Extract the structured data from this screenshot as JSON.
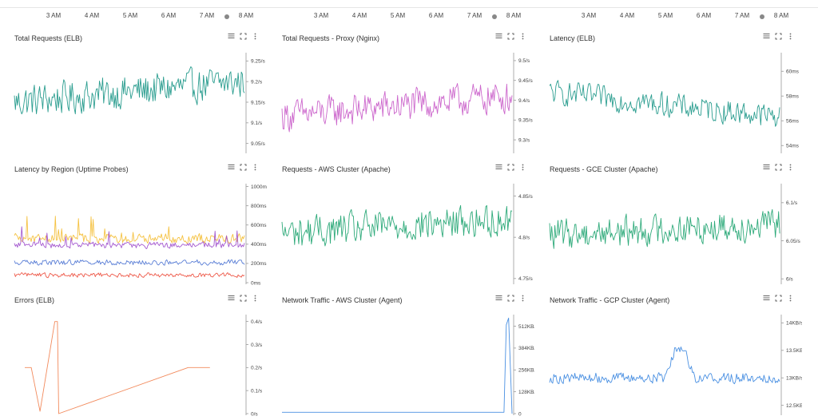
{
  "timeline": {
    "labels": [
      "3 AM",
      "4 AM",
      "5 AM",
      "6 AM",
      "7 AM",
      "8 AM"
    ]
  },
  "colors": {
    "teal": "#2a9d8f",
    "magenta": "#cc66cc",
    "green": "#2eaa7a",
    "orange": "#f28a5c",
    "blue": "#4a90e2",
    "region_yellow": "#f5c242",
    "region_purple": "#a55ad0",
    "region_blue": "#5b7fd6",
    "region_red": "#ee5a4a"
  },
  "panels": [
    {
      "title": "Total Requests (ELB)",
      "icons": [
        "bars-icon",
        "expand-icon",
        "more-icon"
      ]
    },
    {
      "title": "Total Requests - Proxy (Nginx)",
      "icons": [
        "bars-icon",
        "expand-icon",
        "more-icon"
      ]
    },
    {
      "title": "Latency (ELB)",
      "icons": [
        "bars-icon",
        "expand-icon",
        "more-icon"
      ]
    },
    {
      "title": "Latency by Region (Uptime Probes)",
      "icons": [
        "bars-icon",
        "expand-icon",
        "more-icon"
      ]
    },
    {
      "title": "Requests - AWS Cluster (Apache)",
      "icons": [
        "bars-icon",
        "expand-icon",
        "more-icon"
      ]
    },
    {
      "title": "Requests - GCE Cluster (Apache)",
      "icons": [
        "bars-icon",
        "expand-icon",
        "more-icon"
      ]
    },
    {
      "title": "Errors (ELB)",
      "icons": [
        "bars-icon",
        "expand-icon",
        "more-icon"
      ]
    },
    {
      "title": "Network Traffic - AWS Cluster (Agent)",
      "icons": [
        "bars-icon",
        "expand-icon",
        "more-icon"
      ]
    },
    {
      "title": "Network Traffic - GCP Cluster (Agent)",
      "icons": [
        "bars-icon",
        "expand-icon",
        "more-icon"
      ]
    }
  ],
  "chart_data": [
    {
      "type": "line",
      "title": "Total Requests (ELB)",
      "ylim": [
        9.03,
        9.27
      ],
      "y_ticks": [
        "9.05/s",
        "9.1/s",
        "9.15/s",
        "9.2/s",
        "9.25/s"
      ],
      "y_tick_values": [
        9.05,
        9.1,
        9.15,
        9.2,
        9.25
      ],
      "series": [
        {
          "shape": "noisy",
          "base_start": 9.15,
          "base_end": 9.2,
          "amplitude": 0.05,
          "color": "teal"
        }
      ]
    },
    {
      "type": "line",
      "title": "Total Requests - Proxy (Nginx)",
      "ylim": [
        9.27,
        9.52
      ],
      "y_ticks": [
        "9.3/s",
        "9.35/s",
        "9.4/s",
        "9.45/s",
        "9.5/s"
      ],
      "y_tick_values": [
        9.3,
        9.35,
        9.4,
        9.45,
        9.5
      ],
      "series": [
        {
          "shape": "noisy",
          "base_start": 9.36,
          "base_end": 9.41,
          "amplitude": 0.05,
          "color": "magenta"
        }
      ]
    },
    {
      "type": "line",
      "title": "Latency (ELB)",
      "ylim": [
        53.5,
        61.5
      ],
      "y_ticks": [
        "54ms",
        "56ms",
        "58ms",
        "60ms"
      ],
      "y_tick_values": [
        54,
        56,
        58,
        60
      ],
      "series": [
        {
          "shape": "noisy",
          "base_start": 58.3,
          "base_end": 56.3,
          "amplitude": 1.2,
          "color": "teal"
        }
      ]
    },
    {
      "type": "line",
      "title": "Latency by Region (Uptime Probes)",
      "ylim": [
        0,
        1030
      ],
      "y_ticks": [
        "0ms",
        "200ms",
        "400ms",
        "600ms",
        "800ms",
        "1000ms"
      ],
      "y_tick_values": [
        0,
        200,
        400,
        600,
        800,
        1000
      ],
      "series": [
        {
          "shape": "noisy",
          "base_start": 460,
          "base_end": 460,
          "amplitude": 60,
          "spikes": 240,
          "color": "region_yellow"
        },
        {
          "shape": "noisy",
          "base_start": 390,
          "base_end": 390,
          "amplitude": 40,
          "spikes": 200,
          "color": "region_purple"
        },
        {
          "shape": "noisy",
          "base_start": 210,
          "base_end": 210,
          "amplitude": 35,
          "color": "region_blue"
        },
        {
          "shape": "noisy",
          "base_start": 80,
          "base_end": 80,
          "amplitude": 30,
          "color": "region_red"
        }
      ]
    },
    {
      "type": "line",
      "title": "Requests - AWS Cluster (Apache)",
      "ylim": [
        4.745,
        4.865
      ],
      "y_ticks": [
        "4.75/s",
        "4.8/s",
        "4.85/s"
      ],
      "y_tick_values": [
        4.75,
        4.8,
        4.85
      ],
      "series": [
        {
          "shape": "noisy",
          "base_start": 4.805,
          "base_end": 4.822,
          "amplitude": 0.025,
          "color": "green"
        }
      ]
    },
    {
      "type": "line",
      "title": "Requests - GCE Cluster (Apache)",
      "ylim": [
        5.995,
        6.125
      ],
      "y_ticks": [
        "6/s",
        "6.05/s",
        "6.1/s"
      ],
      "y_tick_values": [
        6.0,
        6.05,
        6.1
      ],
      "series": [
        {
          "shape": "noisy",
          "base_start": 6.058,
          "base_end": 6.072,
          "amplitude": 0.025,
          "color": "green"
        }
      ]
    },
    {
      "type": "line",
      "title": "Errors (ELB)",
      "ylim": [
        0,
        0.43
      ],
      "y_ticks": [
        "0/s",
        "0.1/s",
        "0.2/s",
        "0.3/s",
        "0.4/s"
      ],
      "y_tick_values": [
        0,
        0.1,
        0.2,
        0.3,
        0.4
      ],
      "series": [
        {
          "shape": "points",
          "x": [
            0,
            0.03,
            0.07,
            0.138,
            0.15,
            0.156,
            0.75,
            0.85
          ],
          "y": [
            0.2,
            0.2,
            0.01,
            0.4,
            0.4,
            0.0,
            0.2,
            0.2
          ],
          "start": 0.045,
          "end": 0.85,
          "color": "orange"
        }
      ]
    },
    {
      "type": "line",
      "title": "Network Traffic - AWS Cluster (Agent)",
      "ylim": [
        0,
        580
      ],
      "y_ticks": [
        "0",
        "128KB/s",
        "256KB/s",
        "384KB/s",
        "512KB/s"
      ],
      "y_tick_values": [
        0,
        128,
        256,
        384,
        512
      ],
      "series": [
        {
          "shape": "points",
          "x": [
            0,
            0.94,
            0.965,
            0.975,
            0.985,
            1.0
          ],
          "y": [
            8,
            8,
            8,
            520,
            560,
            0
          ],
          "start": 0,
          "end": 1,
          "color": "blue"
        }
      ]
    },
    {
      "type": "line",
      "title": "Network Traffic - GCP Cluster (Agent)",
      "ylim": [
        12.35,
        14.15
      ],
      "y_ticks": [
        "12.5KB/s",
        "13KB/s",
        "13.5KB/s",
        "14KB/s"
      ],
      "y_tick_values": [
        12.5,
        13.0,
        13.5,
        14.0
      ],
      "series": [
        {
          "shape": "noisy",
          "base_start": 13.0,
          "base_end": 13.0,
          "amplitude": 0.12,
          "bump_start": 0.5,
          "bump_end": 0.63,
          "bump_height": 0.55,
          "color": "blue"
        }
      ]
    }
  ]
}
